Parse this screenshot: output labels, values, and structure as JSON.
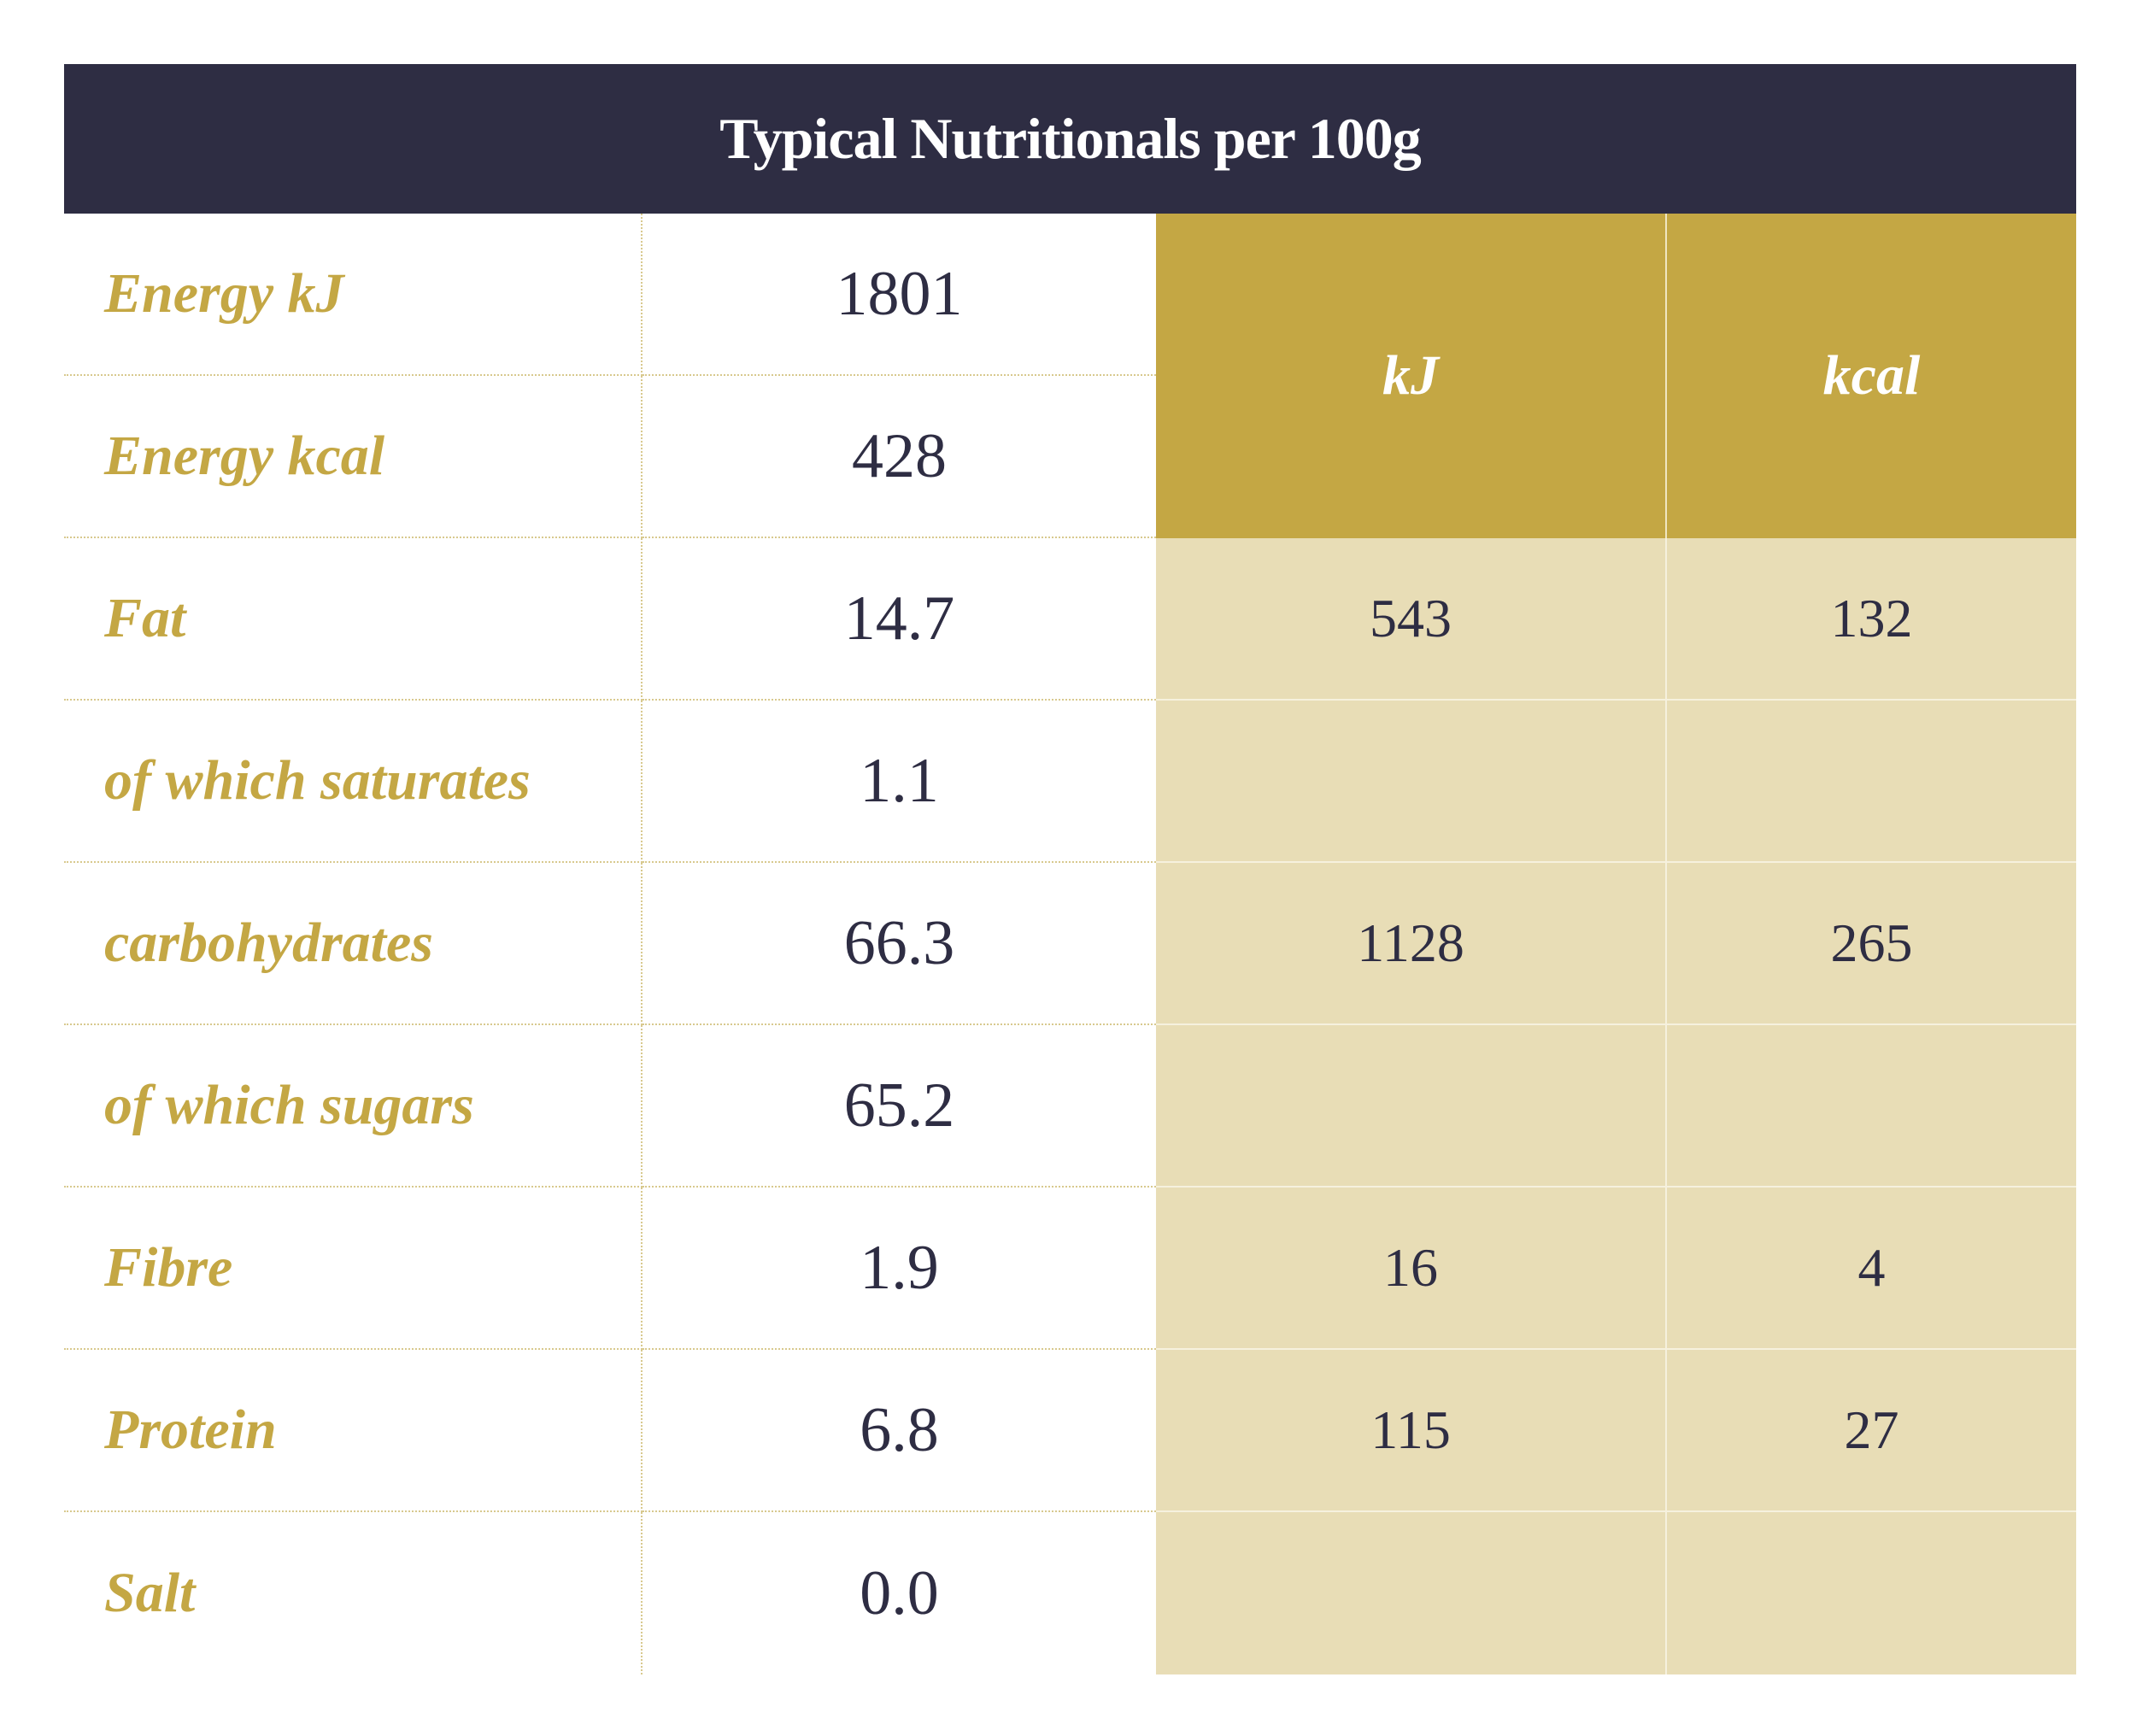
{
  "title": "Typical Nutritionals per 100g",
  "rows": [
    {
      "label": "Energy kJ",
      "value": "1801"
    },
    {
      "label": "Energy kcal",
      "value": "428"
    },
    {
      "label": "Fat",
      "value": "14.7"
    },
    {
      "label": "of which saturates",
      "value": "1.1"
    },
    {
      "label": "carbohydrates",
      "value": "66.3"
    },
    {
      "label": "of which sugars",
      "value": "65.2"
    },
    {
      "label": "Fibre",
      "value": "1.9"
    },
    {
      "label": "Protein",
      "value": "6.8"
    },
    {
      "label": "Salt",
      "value": "0.0"
    }
  ],
  "energy": {
    "headers": {
      "kj": "kJ",
      "kcal": "kcal"
    },
    "rows": [
      {
        "kj": "543",
        "kcal": "132"
      },
      {
        "kj": "",
        "kcal": ""
      },
      {
        "kj": "1128",
        "kcal": "265"
      },
      {
        "kj": "",
        "kcal": ""
      },
      {
        "kj": "16",
        "kcal": "4"
      },
      {
        "kj": "115",
        "kcal": "27"
      },
      {
        "kj": "",
        "kcal": ""
      }
    ]
  },
  "colors": {
    "header_bg": "#2e2d43",
    "gold": "#c4a744",
    "gold_light": "#e8ddb6",
    "text_dark": "#2e2d43"
  }
}
